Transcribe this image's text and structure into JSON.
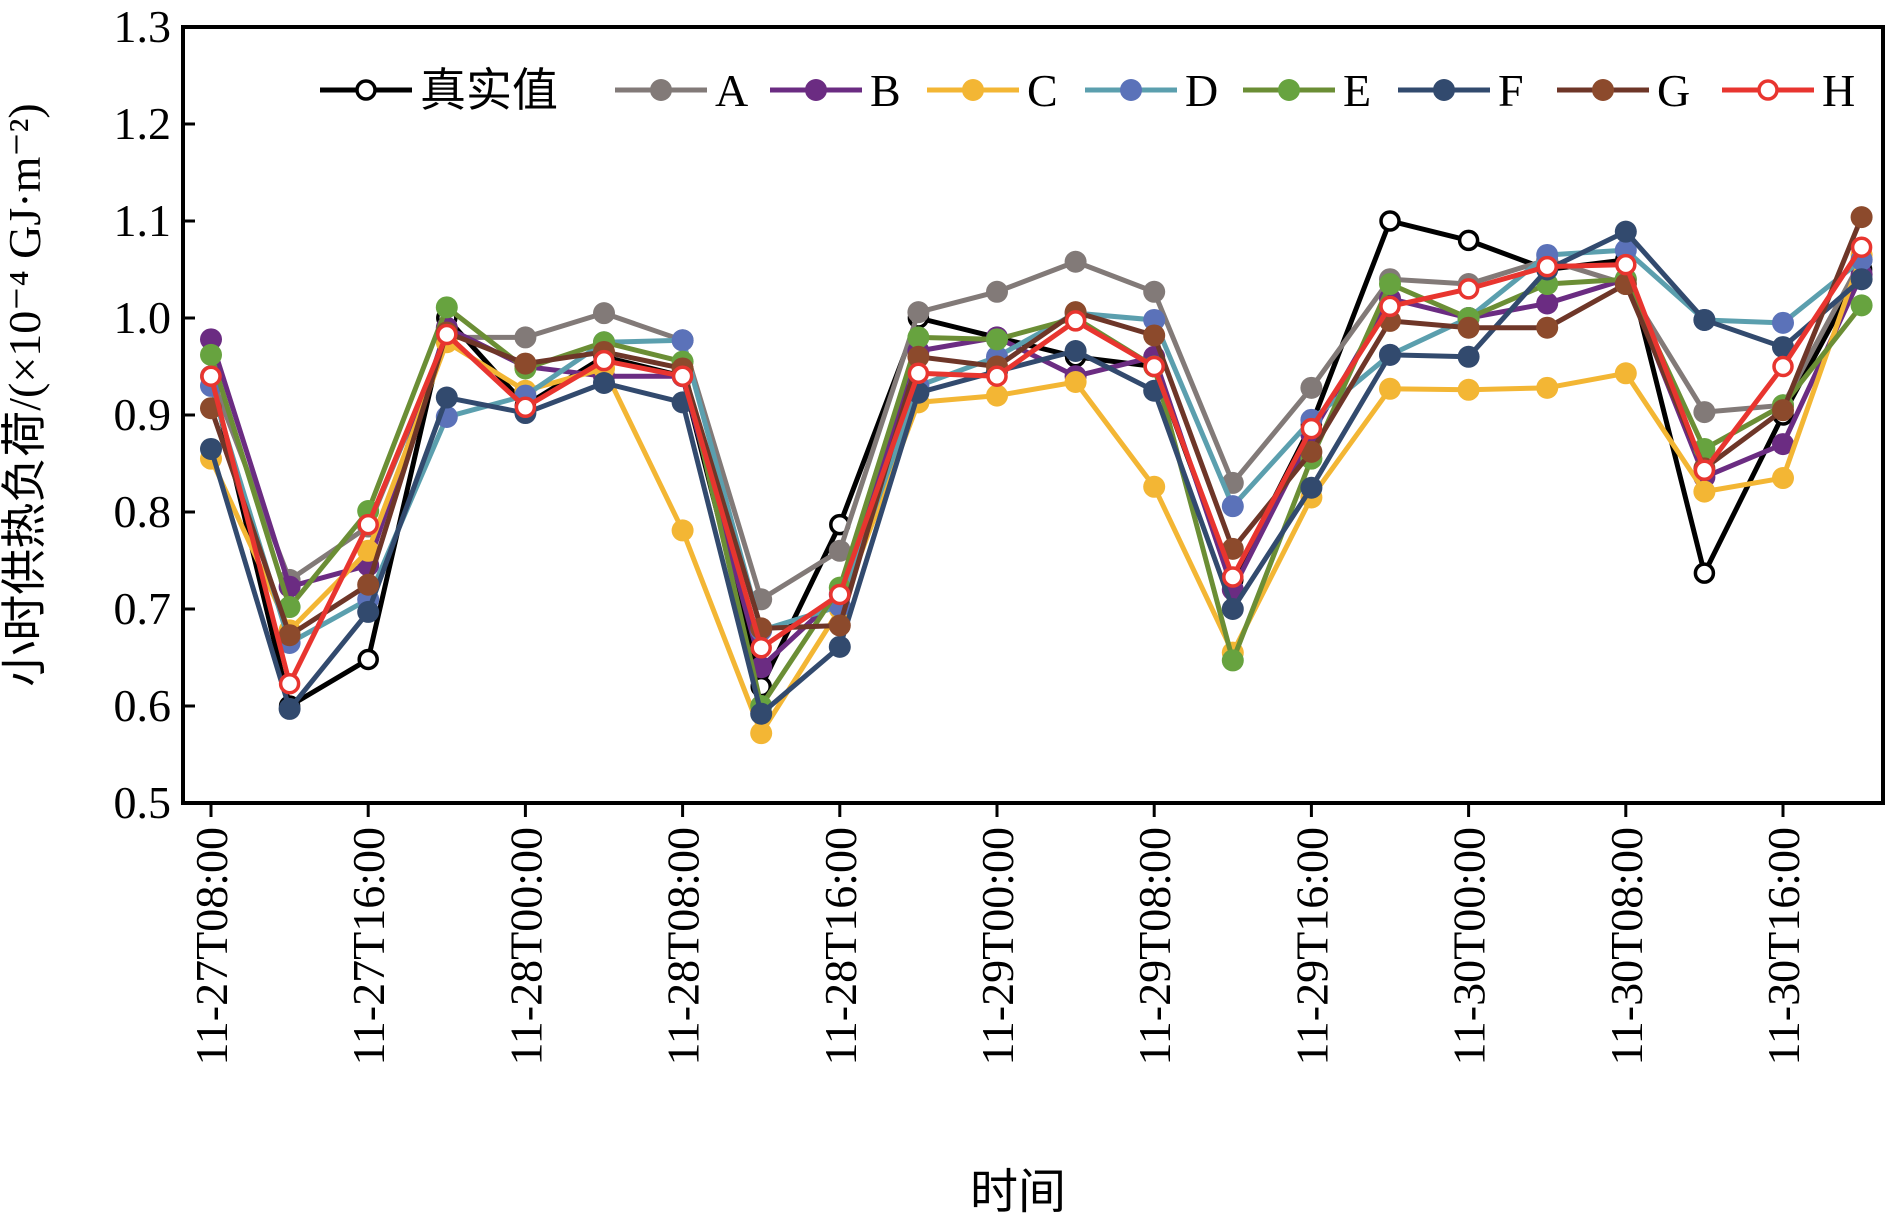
{
  "chart_data": {
    "type": "line",
    "xlabel": "时间",
    "ylabel": "小时供热负荷/(×10⁻⁴ GJ·m⁻²)",
    "ylim": [
      0.5,
      1.3
    ],
    "yticks": [
      0.5,
      0.6,
      0.7,
      0.8,
      0.9,
      1.0,
      1.1,
      1.2,
      1.3
    ],
    "ytick_labels": [
      "0.5",
      "0.6",
      "0.7",
      "0.8",
      "0.9",
      "1.0",
      "1.1",
      "1.2",
      "1.3"
    ],
    "x": [
      "11-27T08:00",
      "11-27T12:00",
      "11-27T16:00",
      "11-27T20:00",
      "11-28T00:00",
      "11-28T04:00",
      "11-28T08:00",
      "11-28T12:00",
      "11-28T16:00",
      "11-28T20:00",
      "11-29T00:00",
      "11-29T04:00",
      "11-29T08:00",
      "11-29T12:00",
      "11-29T16:00",
      "11-29T20:00",
      "11-30T00:00",
      "11-30T04:00",
      "11-30T08:00",
      "11-30T12:00",
      "11-30T16:00",
      "11-30T20:00"
    ],
    "xtick_labels": [
      "11-27T08:00",
      "11-27T16:00",
      "11-28T00:00",
      "11-28T08:00",
      "11-28T16:00",
      "11-29T00:00",
      "11-29T08:00",
      "11-29T16:00",
      "11-30T00:00",
      "11-30T08:00",
      "11-30T16:00"
    ],
    "grid": false,
    "legend": "top",
    "series": [
      {
        "name": "真实值",
        "color": "#000000",
        "hollow": true,
        "values": [
          0.94,
          0.6,
          0.648,
          1.0,
          0.91,
          0.96,
          0.94,
          0.62,
          0.787,
          1.0,
          0.98,
          0.96,
          0.95,
          0.73,
          0.89,
          1.1,
          1.08,
          1.05,
          1.06,
          0.737,
          0.9,
          1.05
        ]
      },
      {
        "name": "A",
        "color": "#827a78",
        "hollow": false,
        "values": [
          0.94,
          0.73,
          0.785,
          0.98,
          0.98,
          1.005,
          0.977,
          0.71,
          0.76,
          1.006,
          1.027,
          1.058,
          1.027,
          0.83,
          0.928,
          1.04,
          1.035,
          1.06,
          1.035,
          0.903,
          0.91,
          1.06
        ]
      },
      {
        "name": "B",
        "color": "#6b2c82",
        "hollow": false,
        "values": [
          0.978,
          0.723,
          0.745,
          0.99,
          0.95,
          0.94,
          0.94,
          0.64,
          0.715,
          0.966,
          0.98,
          0.94,
          0.96,
          0.72,
          0.88,
          1.02,
          1.0,
          1.015,
          1.04,
          0.836,
          0.87,
          1.045
        ]
      },
      {
        "name": "C",
        "color": "#f3b634",
        "hollow": false,
        "values": [
          0.855,
          0.678,
          0.76,
          0.975,
          0.925,
          0.948,
          0.781,
          0.572,
          0.7,
          0.913,
          0.92,
          0.934,
          0.826,
          0.655,
          0.815,
          0.927,
          0.926,
          0.928,
          0.943,
          0.821,
          0.835,
          1.065
        ]
      },
      {
        "name": "D",
        "color": "#5b9fae",
        "hollow": false,
        "marker_color": "#5b72b9",
        "values": [
          0.93,
          0.665,
          0.71,
          0.898,
          0.92,
          0.975,
          0.977,
          0.678,
          0.703,
          0.93,
          0.96,
          1.005,
          0.998,
          0.806,
          0.895,
          0.962,
          1.0,
          1.065,
          1.07,
          0.998,
          0.995,
          1.06
        ]
      },
      {
        "name": "E",
        "color": "#6b8e35",
        "hollow": false,
        "marker_color": "#67a33f",
        "values": [
          0.962,
          0.702,
          0.801,
          1.011,
          0.948,
          0.975,
          0.955,
          0.6,
          0.722,
          0.98,
          0.978,
          1.0,
          0.95,
          0.647,
          0.855,
          1.035,
          1.0,
          1.035,
          1.04,
          0.865,
          0.91,
          1.013
        ]
      },
      {
        "name": "F",
        "color": "#324a6e",
        "hollow": false,
        "values": [
          0.865,
          0.597,
          0.697,
          0.918,
          0.902,
          0.933,
          0.913,
          0.592,
          0.661,
          0.923,
          0.945,
          0.966,
          0.925,
          0.7,
          0.825,
          0.962,
          0.96,
          1.05,
          1.089,
          0.998,
          0.97,
          1.04
        ]
      },
      {
        "name": "G",
        "color": "#6e3628",
        "hollow": false,
        "marker_color": "#8c4a2c",
        "values": [
          0.907,
          0.673,
          0.725,
          0.985,
          0.953,
          0.965,
          0.948,
          0.68,
          0.683,
          0.96,
          0.95,
          1.006,
          0.982,
          0.762,
          0.862,
          0.997,
          0.99,
          0.99,
          1.035,
          0.845,
          0.905,
          1.104
        ]
      },
      {
        "name": "H",
        "color": "#e8352f",
        "hollow": true,
        "values": [
          0.94,
          0.623,
          0.787,
          0.983,
          0.908,
          0.956,
          0.94,
          0.66,
          0.715,
          0.943,
          0.94,
          0.997,
          0.95,
          0.733,
          0.886,
          1.012,
          1.03,
          1.053,
          1.055,
          0.843,
          0.95,
          1.073
        ]
      }
    ]
  }
}
